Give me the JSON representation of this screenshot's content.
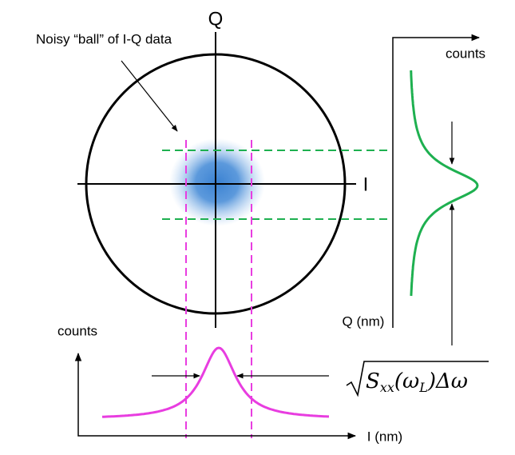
{
  "axes": {
    "q_label": "Q",
    "i_label": "I"
  },
  "annotation": "Noisy “ball” of I-Q data",
  "right_plot": {
    "y_label": "counts",
    "x_label": "Q (nm)"
  },
  "bottom_plot": {
    "y_label": "counts",
    "x_label": "I (nm)"
  },
  "formula": {
    "parts": [
      "S",
      "xx",
      "(ω",
      "L",
      ")Δω"
    ]
  }
}
